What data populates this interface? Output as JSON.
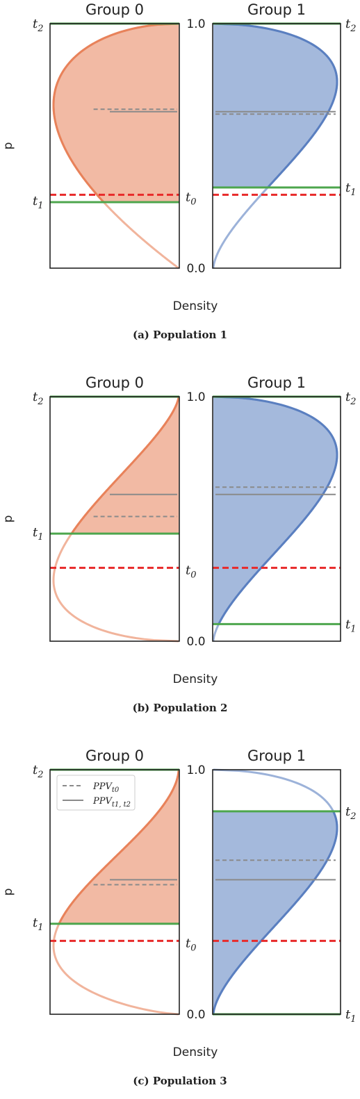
{
  "colors": {
    "group0": "#e8825a",
    "group1": "#5a7fc0",
    "threshold": "#4da64d",
    "t0_line": "#e82a2a",
    "ppv": "#8a8a8a"
  },
  "chart_data": [
    {
      "type": "area",
      "caption": "(a) Population 1",
      "ylabel": "p",
      "xlabel": "Density",
      "ylim": [
        0.0,
        1.0
      ],
      "y_ticks": [
        "0.0",
        "1.0"
      ],
      "marker_labels": {
        "t0": "t0",
        "t1": "t1",
        "t2": "t2"
      },
      "panels": [
        {
          "title": "Group 0",
          "beta": [
            2.0,
            1.5
          ],
          "shade": [
            0.27,
            1.0
          ],
          "t0": 0.3,
          "t1": 0.27,
          "t2": 1.0,
          "ppv_t0": 0.65,
          "ppv_t1t2": 0.64
        },
        {
          "title": "Group 1",
          "beta": [
            2.6,
            1.5
          ],
          "shade": [
            0.33,
            1.0
          ],
          "t0": 0.3,
          "t1": 0.33,
          "t2": 1.0,
          "ppv_t0": 0.63,
          "ppv_t1t2": 0.64
        }
      ]
    },
    {
      "type": "area",
      "caption": "(b) Population 2",
      "ylabel": "p",
      "xlabel": "Density",
      "ylim": [
        0.0,
        1.0
      ],
      "y_ticks": [
        "0.0",
        "1.0"
      ],
      "marker_labels": {
        "t0": "t0",
        "t1": "t1",
        "t2": "t2"
      },
      "panels": [
        {
          "title": "Group 0",
          "beta": [
            1.5,
            2.5
          ],
          "shade": [
            0.44,
            1.0
          ],
          "t0": 0.3,
          "t1": 0.44,
          "t2": 1.0,
          "ppv_t0": 0.51,
          "ppv_t1t2": 0.6
        },
        {
          "title": "Group 1",
          "beta": [
            2.6,
            1.5
          ],
          "shade": [
            0.07,
            1.0
          ],
          "t0": 0.3,
          "t1": 0.07,
          "t2": 1.0,
          "ppv_t0": 0.63,
          "ppv_t1t2": 0.6
        }
      ]
    },
    {
      "type": "area",
      "caption": "(c) Population 3",
      "ylabel": "p",
      "xlabel": "Density",
      "ylim": [
        0.0,
        1.0
      ],
      "y_ticks": [
        "0.0",
        "1.0"
      ],
      "marker_labels": {
        "t0": "t0",
        "t1": "t1",
        "t2": "t2"
      },
      "legend": {
        "position": "upper-left",
        "entries": [
          "PPVt0",
          "PPVt1, t2"
        ]
      },
      "panels": [
        {
          "title": "Group 0",
          "beta": [
            1.7,
            2.8
          ],
          "shade": [
            0.37,
            1.0
          ],
          "t0": 0.3,
          "t1": 0.37,
          "t2": 1.0,
          "ppv_t0": 0.53,
          "ppv_t1t2": 0.55
        },
        {
          "title": "Group 1",
          "beta": [
            2.6,
            1.5
          ],
          "shade": [
            0.0,
            0.83
          ],
          "t0": 0.3,
          "t1": 0.0,
          "t2": 0.83,
          "ppv_t0": 0.63,
          "ppv_t1t2": 0.55
        }
      ]
    }
  ]
}
